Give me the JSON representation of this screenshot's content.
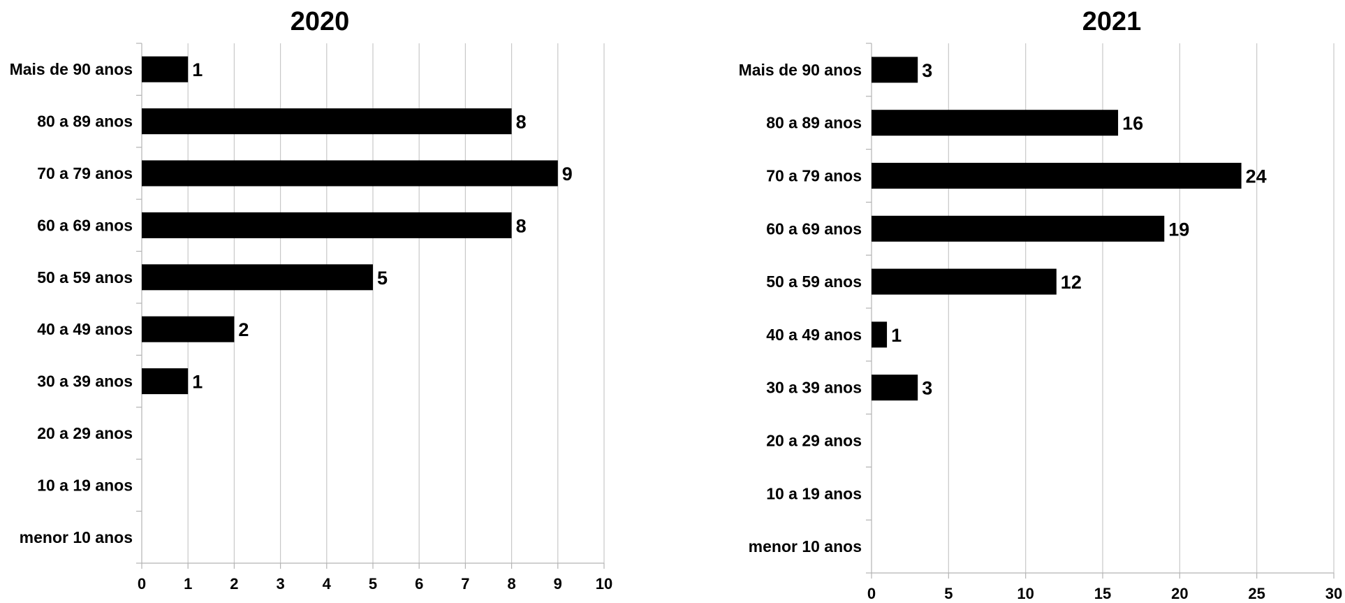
{
  "chart_data": [
    {
      "type": "bar",
      "orientation": "horizontal",
      "title": "2020",
      "categories": [
        "Mais de 90 anos",
        "80 a 89 anos",
        "70 a 79 anos",
        "60 a 69 anos",
        "50 a 59 anos",
        "40 a 49 anos",
        "30 a 39 anos",
        "20 a 29 anos",
        "10 a 19 anos",
        "menor 10 anos"
      ],
      "values": [
        1,
        8,
        9,
        8,
        5,
        2,
        1,
        0,
        0,
        0
      ],
      "data_labels": [
        "1",
        "8",
        "9",
        "8",
        "5",
        "2",
        "1",
        "",
        "",
        ""
      ],
      "xlim": [
        0,
        10
      ],
      "xticks": [
        "0",
        "1",
        "2",
        "3",
        "4",
        "5",
        "6",
        "7",
        "8",
        "9",
        "10"
      ],
      "grid": true,
      "bar_color": "#000000"
    },
    {
      "type": "bar",
      "orientation": "horizontal",
      "title": "2021",
      "categories": [
        "Mais de 90 anos",
        "80 a 89 anos",
        "70 a 79 anos",
        "60 a 69 anos",
        "50 a 59 anos",
        "40 a 49 anos",
        "30 a 39 anos",
        "20 a 29 anos",
        "10 a 19 anos",
        "menor 10 anos"
      ],
      "values": [
        3,
        16,
        24,
        19,
        12,
        1,
        3,
        0,
        0,
        0
      ],
      "data_labels": [
        "3",
        "16",
        "24",
        "19",
        "12",
        "1",
        "3",
        "",
        "",
        ""
      ],
      "xlim": [
        0,
        30
      ],
      "xticks": [
        "0",
        "5",
        "10",
        "15",
        "20",
        "25",
        "30"
      ],
      "grid": true,
      "bar_color": "#000000"
    }
  ]
}
